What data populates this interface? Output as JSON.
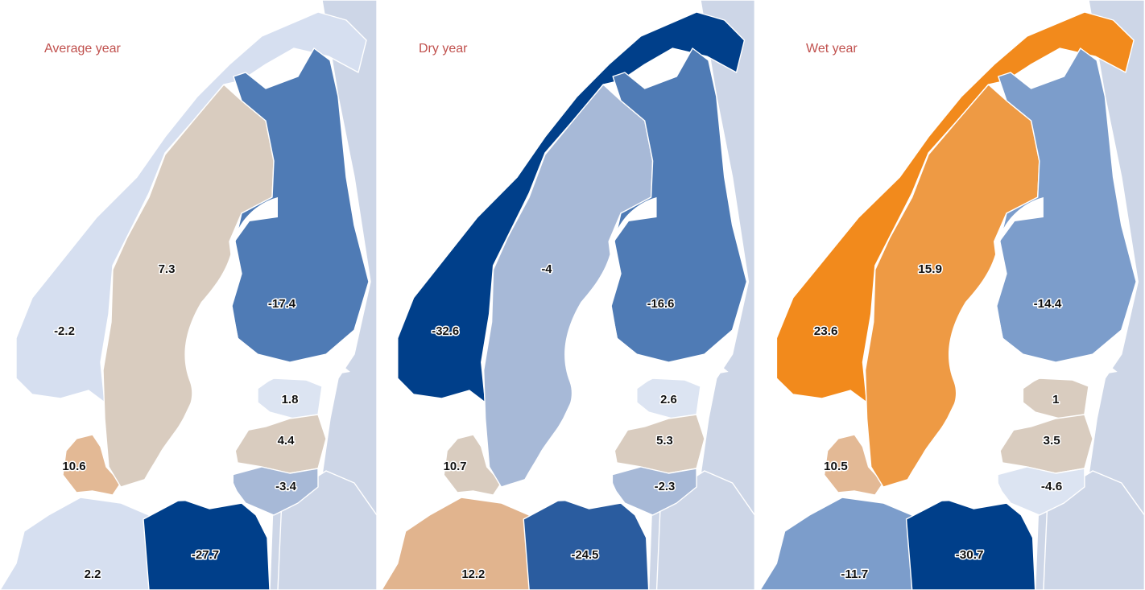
{
  "panels": [
    {
      "title": "Average year",
      "regions": {
        "norway": {
          "value": "-2.2",
          "color": "#d6dff0"
        },
        "sweden": {
          "value": "7.3",
          "color": "#d9ccbf"
        },
        "finland": {
          "value": "-17.4",
          "color": "#4f7bb5"
        },
        "estonia": {
          "value": "1.8",
          "color": "#dce4f2"
        },
        "latvia": {
          "value": "4.4",
          "color": "#d9ccbf"
        },
        "lithuania": {
          "value": "-3.4",
          "color": "#a7b9d7"
        },
        "denmark": {
          "value": "10.6",
          "color": "#e3b995"
        },
        "germany": {
          "value": "2.2",
          "color": "#d6dff0"
        },
        "poland": {
          "value": "-27.7",
          "color": "#003f8a"
        }
      }
    },
    {
      "title": "Dry year",
      "regions": {
        "norway": {
          "value": "-32.6",
          "color": "#003f8a"
        },
        "sweden": {
          "value": "-4",
          "color": "#a7b9d7"
        },
        "finland": {
          "value": "-16.6",
          "color": "#4f7bb5"
        },
        "estonia": {
          "value": "2.6",
          "color": "#dce4f2"
        },
        "latvia": {
          "value": "5.3",
          "color": "#d9ccbf"
        },
        "lithuania": {
          "value": "-2.3",
          "color": "#a7b9d7"
        },
        "denmark": {
          "value": "10.7",
          "color": "#d9ccbf"
        },
        "germany": {
          "value": "12.2",
          "color": "#e1b48e"
        },
        "poland": {
          "value": "-24.5",
          "color": "#2a5c9f"
        }
      }
    },
    {
      "title": "Wet year",
      "regions": {
        "norway": {
          "value": "23.6",
          "color": "#f28a1c"
        },
        "sweden": {
          "value": "15.9",
          "color": "#ee9a44"
        },
        "finland": {
          "value": "-14.4",
          "color": "#7c9dcb"
        },
        "estonia": {
          "value": "1",
          "color": "#d9ccbf"
        },
        "latvia": {
          "value": "3.5",
          "color": "#d9ccbf"
        },
        "lithuania": {
          "value": "-4.6",
          "color": "#dce4f2"
        },
        "denmark": {
          "value": "10.5",
          "color": "#e3b995"
        },
        "germany": {
          "value": "-11.7",
          "color": "#7c9dcb"
        },
        "poland": {
          "value": "-30.7",
          "color": "#003f8a"
        }
      }
    }
  ]
}
